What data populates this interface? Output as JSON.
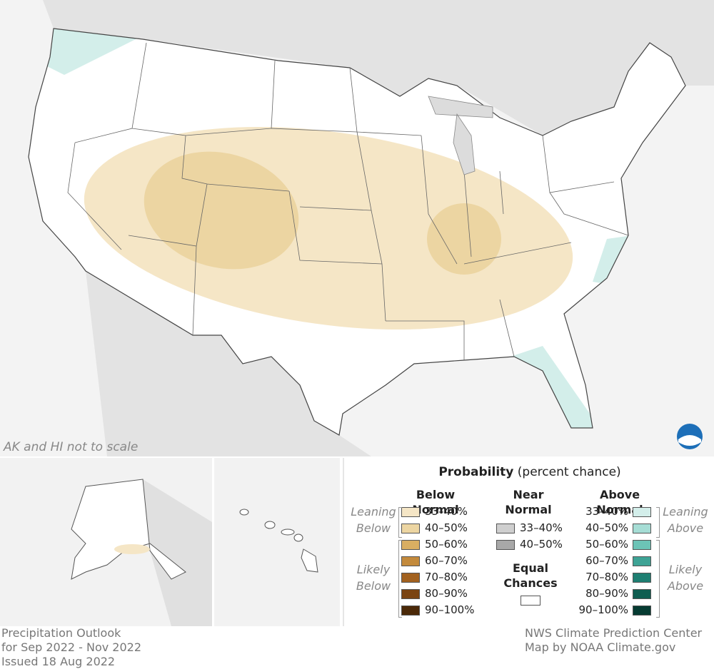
{
  "map": {
    "note": "AK and HI not to scale"
  },
  "legend": {
    "title": "Probability",
    "subtitle": "(percent chance)",
    "below": {
      "heading": "Below Normal",
      "leaning": "Leaning Below",
      "likely": "Likely Below",
      "items": [
        {
          "label": "33–40%",
          "color": "#f5e6c6"
        },
        {
          "label": "40–50%",
          "color": "#ecd5a2"
        },
        {
          "label": "50–60%",
          "color": "#d9ae62"
        },
        {
          "label": "60–70%",
          "color": "#c38a3c"
        },
        {
          "label": "70–80%",
          "color": "#a2611f"
        },
        {
          "label": "80–90%",
          "color": "#7a4412"
        },
        {
          "label": "90–100%",
          "color": "#4b2908"
        }
      ]
    },
    "near": {
      "heading": "Near Normal",
      "items": [
        {
          "label": "33–40%",
          "color": "#cfcfcf"
        },
        {
          "label": "40–50%",
          "color": "#a8a8a8"
        }
      ]
    },
    "equal": {
      "label": "Equal Chances",
      "color": "#ffffff"
    },
    "above": {
      "heading": "Above Normal",
      "leaning": "Leaning Above",
      "likely": "Likely Above",
      "items": [
        {
          "label": "33–40%",
          "color": "#d3eeea"
        },
        {
          "label": "40–50%",
          "color": "#a6ddd5"
        },
        {
          "label": "50–60%",
          "color": "#6cc3b6"
        },
        {
          "label": "60–70%",
          "color": "#3ea395"
        },
        {
          "label": "70–80%",
          "color": "#1e7f72"
        },
        {
          "label": "80–90%",
          "color": "#0f5e51"
        },
        {
          "label": "90–100%",
          "color": "#063b32"
        }
      ]
    }
  },
  "footer": {
    "left": [
      "Precipitation Outlook",
      "for Sep 2022 - Nov 2022",
      "Issued 18 Aug 2022"
    ],
    "right": [
      "NWS Climate Prediction Center",
      "Map by NOAA Climate.gov"
    ]
  }
}
